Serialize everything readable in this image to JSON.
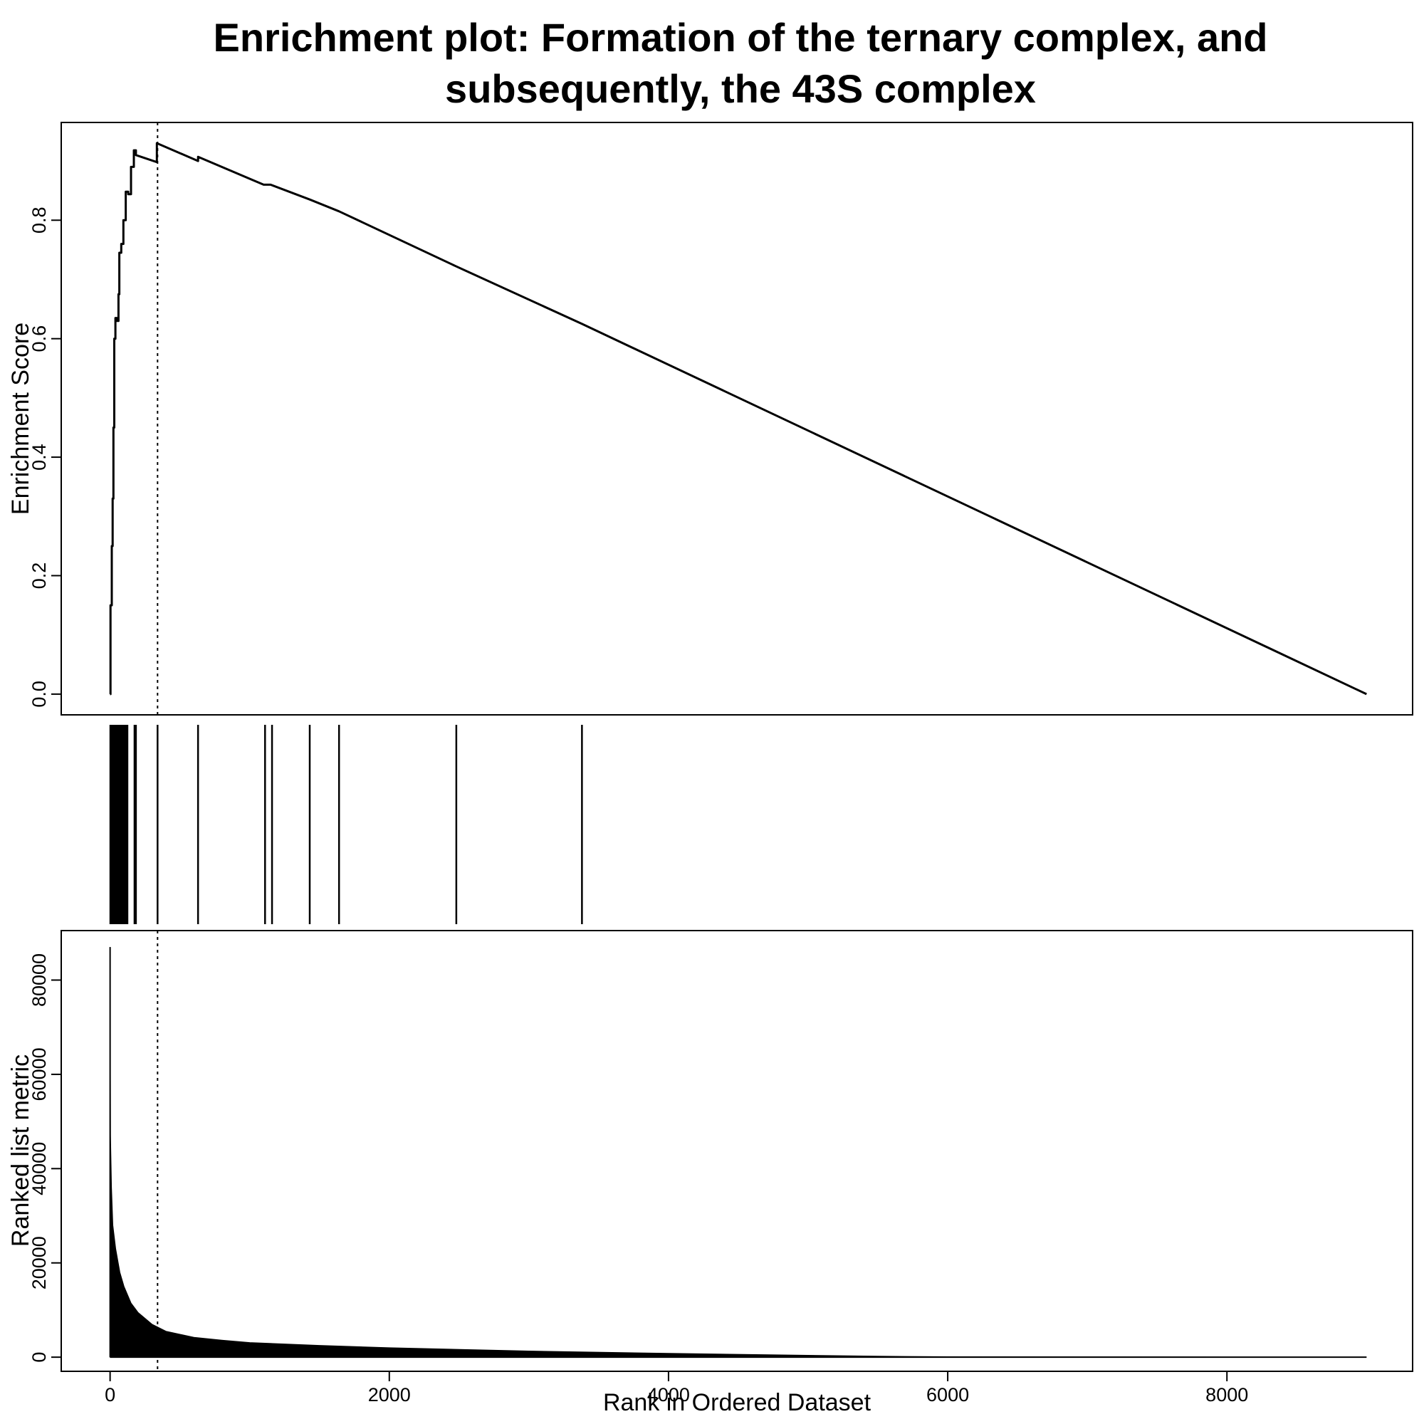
{
  "chart_data": {
    "type": "line",
    "title_line1": "Enrichment plot: Formation of the ternary complex, and",
    "title_line2": "subsequently, the 43S complex",
    "xlabel": "Rank in Ordered Dataset",
    "x_ticks": [
      0,
      2000,
      4000,
      6000,
      8000
    ],
    "xlim": [
      -350,
      9330
    ],
    "leading_edge_rank": 340,
    "enrichment_panel": {
      "ylabel": "Enrichment Score",
      "y_ticks": [
        "0.0",
        "0.2",
        "0.4",
        "0.6",
        "0.8"
      ],
      "y_tick_values": [
        0,
        0.2,
        0.4,
        0.6,
        0.8
      ],
      "ylim": [
        -0.035,
        0.965
      ],
      "series": [
        {
          "x": [
            0,
            3,
            3,
            12,
            12,
            18,
            18,
            24,
            24,
            30,
            30,
            38,
            38,
            48,
            48,
            60,
            60,
            66,
            66,
            80,
            80,
            95,
            95,
            112,
            112,
            130,
            130,
            150,
            150,
            170,
            170,
            185,
            185,
            335,
            335,
            630,
            630,
            1100,
            1100,
            1150,
            1150,
            1430,
            1430,
            1640,
            1640,
            2480,
            2480,
            3380,
            3380,
            9000
          ],
          "y": [
            0,
            0,
            0.15,
            0.15,
            0.25,
            0.25,
            0.33,
            0.33,
            0.45,
            0.45,
            0.6,
            0.6,
            0.635,
            0.635,
            0.63,
            0.63,
            0.675,
            0.675,
            0.745,
            0.745,
            0.76,
            0.76,
            0.8,
            0.8,
            0.848,
            0.848,
            0.844,
            0.844,
            0.89,
            0.89,
            0.918,
            0.918,
            0.91,
            0.898,
            0.93,
            0.9,
            0.907,
            0.86,
            0.86,
            0.86,
            0.86,
            0.835,
            0.835,
            0.815,
            0.815,
            0.722,
            0.722,
            0.625,
            0.625,
            0
          ]
        }
      ]
    },
    "hits_panel": {
      "hit_ranks": [
        2,
        8,
        14,
        20,
        26,
        33,
        40,
        47,
        55,
        62,
        70,
        77,
        84,
        92,
        100,
        108,
        116,
        124,
        175,
        180,
        185,
        340,
        630,
        1110,
        1160,
        1430,
        1640,
        2480,
        3380
      ]
    },
    "metric_panel": {
      "ylabel": "Ranked list metric",
      "y_ticks": [
        "0",
        "20000",
        "40000",
        "60000",
        "80000"
      ],
      "y_tick_values": [
        0,
        20000,
        40000,
        60000,
        80000
      ],
      "ylim": [
        -3000,
        90500
      ],
      "max_value": 87000,
      "curve_ranks": [
        0,
        3,
        10,
        20,
        40,
        70,
        100,
        150,
        200,
        300,
        400,
        600,
        800,
        1000,
        1500,
        2000,
        3000,
        4000,
        5000,
        5500,
        6000,
        7000,
        8000,
        9000
      ],
      "curve_values": [
        87000,
        47000,
        36000,
        28000,
        23000,
        18000,
        15000,
        11500,
        9500,
        7000,
        5500,
        4200,
        3600,
        3100,
        2500,
        2000,
        1300,
        800,
        400,
        200,
        100,
        50,
        20,
        0
      ]
    }
  }
}
